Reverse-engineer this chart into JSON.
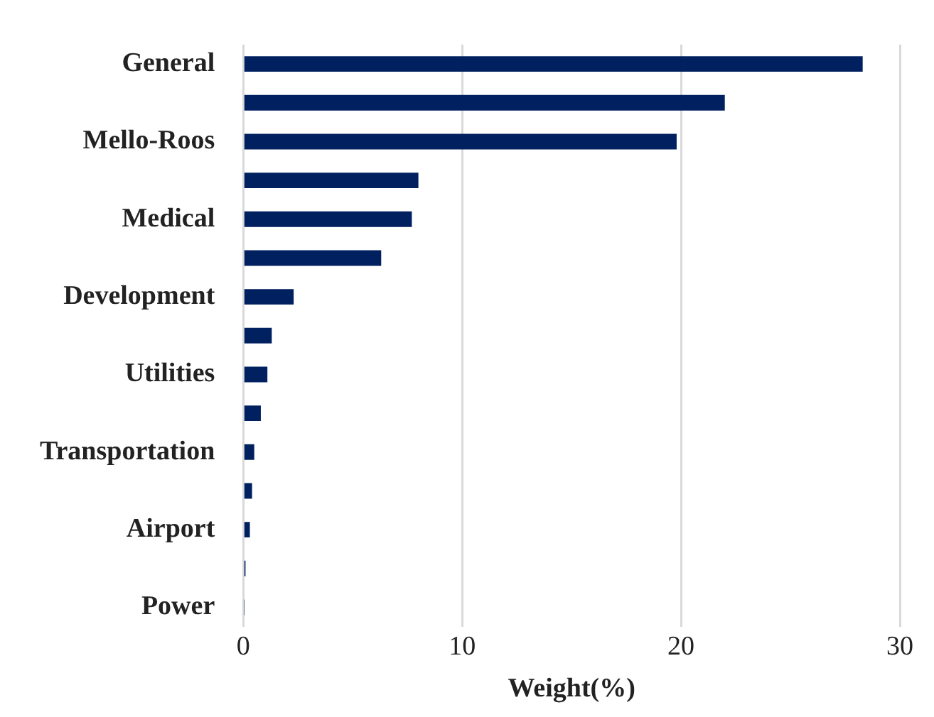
{
  "chart_data": {
    "type": "bar",
    "orientation": "horizontal",
    "categories": [
      "General",
      null,
      "Mello-Roos",
      null,
      "Medical",
      null,
      "Development",
      null,
      "Utilities",
      null,
      "Transportation",
      null,
      "Airport",
      null,
      "Power"
    ],
    "values": [
      28.3,
      22.0,
      19.8,
      8.0,
      7.7,
      6.3,
      2.3,
      1.3,
      1.1,
      0.8,
      0.5,
      0.4,
      0.3,
      0.1,
      0.03
    ],
    "color": "#002060",
    "xlim": [
      0,
      30
    ],
    "xticks": [
      0,
      10,
      20,
      30
    ],
    "xlabel": "Weight(%)",
    "grid": "x",
    "legend": false
  }
}
